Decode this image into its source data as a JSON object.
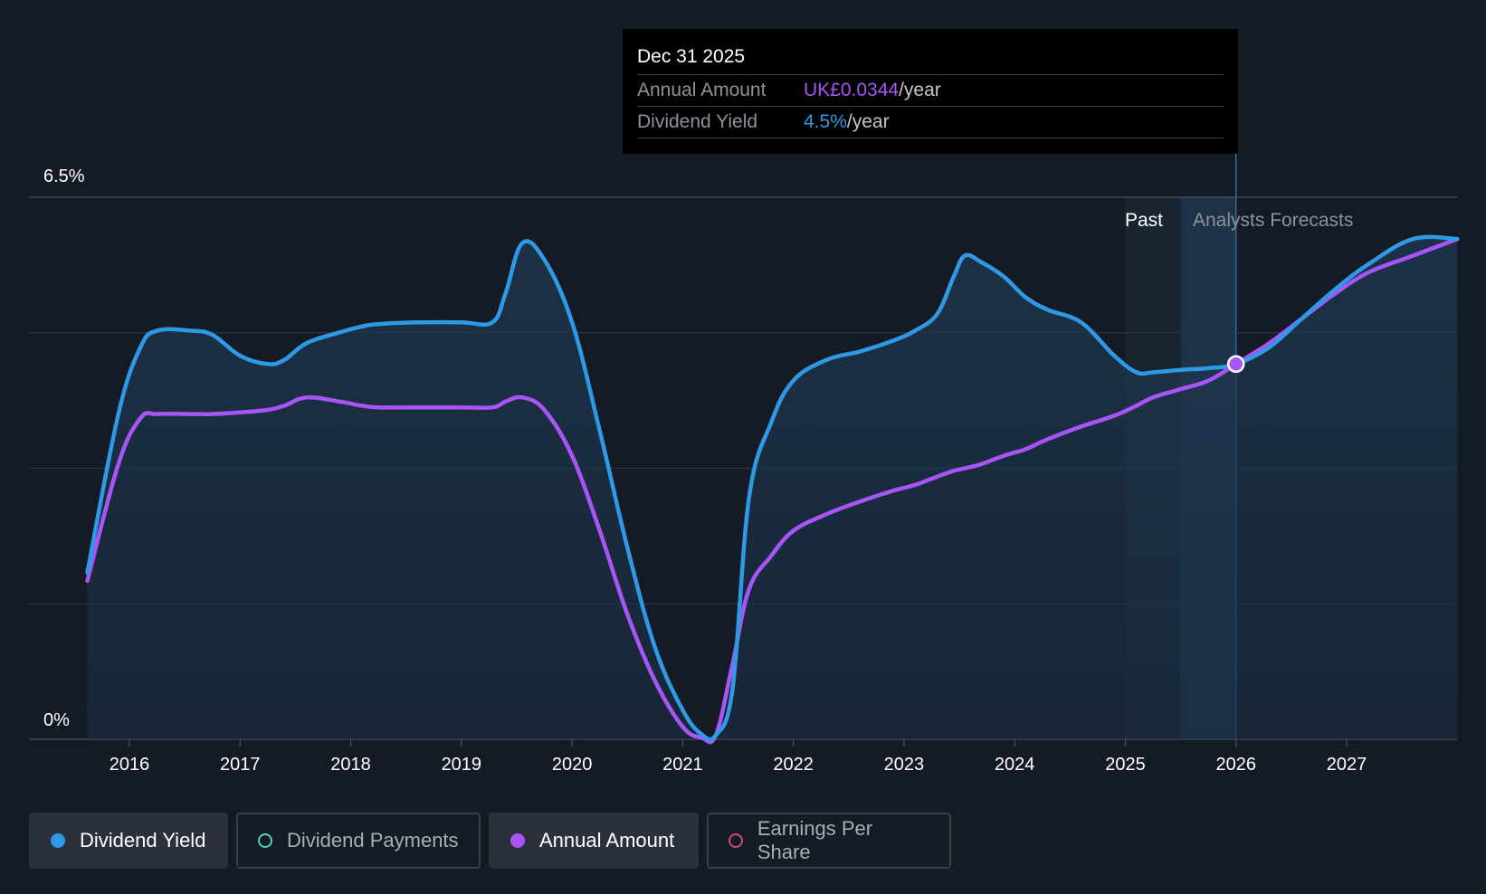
{
  "tooltip": {
    "date": "Dec 31 2025",
    "rows": [
      {
        "key": "Annual Amount",
        "value": "UK£0.0344",
        "unit": "/year"
      },
      {
        "key": "Dividend Yield",
        "value": "4.5%",
        "unit": "/year"
      }
    ]
  },
  "regions": {
    "past": "Past",
    "forecast": "Analysts Forecasts"
  },
  "legend": [
    {
      "label": "Dividend Yield",
      "color": "#2e9ae6",
      "active": true,
      "style": "filled"
    },
    {
      "label": "Dividend Payments",
      "color": "#4fd1c5",
      "active": false,
      "style": "hollow"
    },
    {
      "label": "Annual Amount",
      "color": "#a855f7",
      "active": true,
      "style": "filled"
    },
    {
      "label": "Earnings Per Share",
      "color": "#d1477a",
      "active": false,
      "style": "hollow"
    }
  ],
  "colors": {
    "background": "#151b25",
    "yield": "#2e9ae6",
    "amount": "#a855f7",
    "grid": "#2c3440"
  },
  "chart_data": {
    "type": "line",
    "title": "",
    "xlabel": "",
    "ylabel": "",
    "ylim": [
      0,
      6.5
    ],
    "y_ticks": [
      "0%",
      "6.5%"
    ],
    "x_ticks": [
      "2016",
      "2017",
      "2018",
      "2019",
      "2020",
      "2021",
      "2022",
      "2023",
      "2024",
      "2025",
      "2026",
      "2027"
    ],
    "x_range": [
      2015.6,
      2028.0
    ],
    "past_until": 2025.5,
    "highlight_x": 2026.0,
    "series": [
      {
        "name": "Dividend Yield",
        "x": [
          2015.62,
          2015.9,
          2016.1,
          2016.25,
          2016.55,
          2016.75,
          2017.0,
          2017.25,
          2017.4,
          2017.6,
          2017.9,
          2018.1,
          2018.25,
          2018.6,
          2019.0,
          2019.28,
          2019.4,
          2019.55,
          2019.75,
          2020.0,
          2020.25,
          2020.5,
          2020.75,
          2021.0,
          2021.17,
          2021.3,
          2021.45,
          2021.6,
          2021.8,
          2022.0,
          2022.3,
          2022.6,
          2022.9,
          2023.1,
          2023.3,
          2023.45,
          2023.55,
          2023.7,
          2023.9,
          2024.1,
          2024.3,
          2024.6,
          2024.9,
          2025.1,
          2025.25,
          2025.5,
          2025.75,
          2026.0,
          2026.3,
          2026.6,
          2026.9,
          2027.2,
          2027.6,
          2028.0
        ],
        "values": [
          2.0,
          3.9,
          4.7,
          4.9,
          4.9,
          4.85,
          4.6,
          4.5,
          4.55,
          4.75,
          4.88,
          4.95,
          4.98,
          5.0,
          5.0,
          5.0,
          5.35,
          5.95,
          5.75,
          5.0,
          3.7,
          2.3,
          1.1,
          0.35,
          0.06,
          0.05,
          0.6,
          2.9,
          3.8,
          4.3,
          4.55,
          4.65,
          4.78,
          4.9,
          5.1,
          5.55,
          5.8,
          5.72,
          5.55,
          5.3,
          5.15,
          5.0,
          4.6,
          4.4,
          4.4,
          4.43,
          4.45,
          4.5,
          4.7,
          5.05,
          5.4,
          5.7,
          6.0,
          6.0
        ]
      },
      {
        "name": "Annual Amount",
        "x": [
          2015.62,
          2015.9,
          2016.1,
          2016.25,
          2016.55,
          2016.75,
          2017.0,
          2017.25,
          2017.4,
          2017.6,
          2017.9,
          2018.1,
          2018.25,
          2018.6,
          2019.0,
          2019.28,
          2019.4,
          2019.55,
          2019.75,
          2020.0,
          2020.25,
          2020.5,
          2020.75,
          2021.0,
          2021.17,
          2021.3,
          2021.45,
          2021.6,
          2021.8,
          2022.0,
          2022.3,
          2022.6,
          2022.9,
          2023.1,
          2023.3,
          2023.45,
          2023.55,
          2023.7,
          2023.9,
          2024.1,
          2024.3,
          2024.6,
          2024.9,
          2025.1,
          2025.25,
          2025.5,
          2025.75,
          2026.0,
          2026.3,
          2026.6,
          2026.9,
          2027.2,
          2027.6,
          2028.0
        ],
        "values": [
          1.9,
          3.3,
          3.85,
          3.9,
          3.9,
          3.9,
          3.92,
          3.95,
          4.0,
          4.1,
          4.05,
          4.0,
          3.98,
          3.98,
          3.98,
          3.98,
          4.05,
          4.1,
          3.95,
          3.4,
          2.5,
          1.5,
          0.7,
          0.15,
          0.02,
          0.05,
          0.9,
          1.8,
          2.2,
          2.5,
          2.7,
          2.85,
          2.98,
          3.05,
          3.15,
          3.22,
          3.25,
          3.3,
          3.4,
          3.48,
          3.6,
          3.75,
          3.88,
          4.0,
          4.1,
          4.2,
          4.3,
          4.5,
          4.75,
          5.05,
          5.35,
          5.6,
          5.8,
          6.0
        ]
      }
    ]
  }
}
